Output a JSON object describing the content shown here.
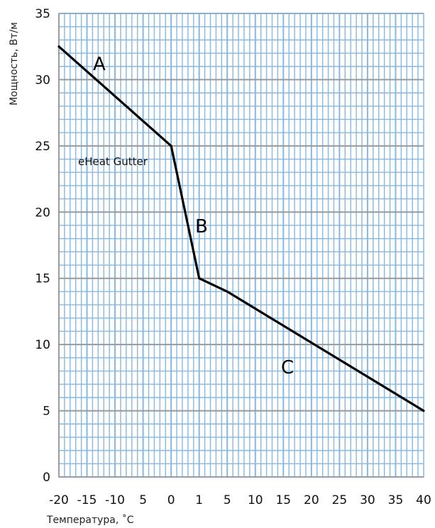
{
  "chart_data": {
    "type": "line",
    "xlabel": "Температура, ˚C",
    "ylabel": "Мощность, Вт/м",
    "x_tick_labels": [
      "-20",
      "-15",
      "-10",
      "5",
      "0",
      "1",
      "5",
      "10",
      "15",
      "20",
      "25",
      "30",
      "35",
      "40"
    ],
    "y_tick_labels": [
      "0",
      "5",
      "10",
      "15",
      "20",
      "25",
      "30",
      "35"
    ],
    "ylim": [
      0,
      35
    ],
    "grid": true,
    "series": [
      {
        "name": "eHeat Gutter",
        "x_positions": [
          -20,
          -15,
          -10,
          5,
          0,
          1,
          5,
          10,
          15,
          20,
          25,
          30,
          35,
          40
        ],
        "points": [
          {
            "x": "-20",
            "y": 32.5
          },
          {
            "x": "0",
            "y": 25.0
          },
          {
            "x": "1",
            "y": 15.0
          },
          {
            "x": "5",
            "y": 14.0
          },
          {
            "x": "40",
            "y": 5.0
          }
        ]
      }
    ],
    "segment_labels": [
      "A",
      "B",
      "C"
    ],
    "colors": {
      "grid_major": "#9a9a9a",
      "grid_minor": "#86b8e0",
      "line": "#000000"
    }
  }
}
